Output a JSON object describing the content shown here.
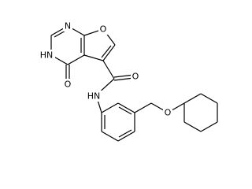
{
  "atoms": [
    {
      "label": "N"
    },
    {
      "label": "O"
    },
    {
      "label": "HN"
    },
    {
      "label": "O"
    },
    {
      "label": "O"
    },
    {
      "label": "HN"
    },
    {
      "label": "O"
    }
  ]
}
